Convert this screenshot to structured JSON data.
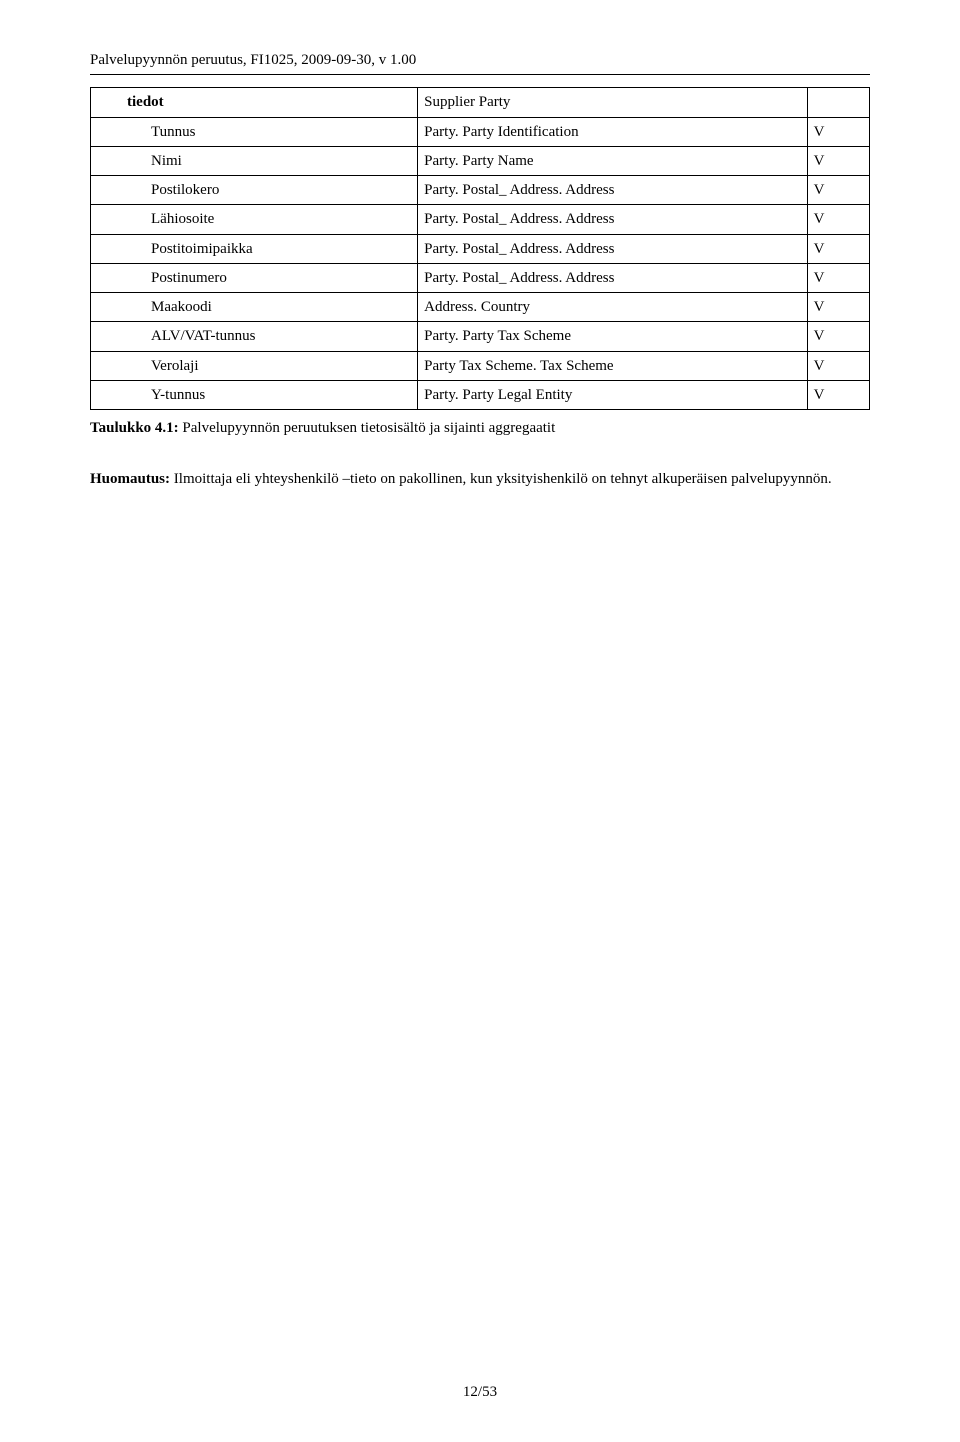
{
  "header": {
    "title": "Palvelupyynnön peruutus, FI1025, 2009-09-30, v 1.00"
  },
  "table": {
    "rows": [
      {
        "label": "tiedot",
        "labelBold": true,
        "indent": 1,
        "value": "Supplier Party",
        "mark": ""
      },
      {
        "label": "Tunnus",
        "labelBold": false,
        "indent": 2,
        "value": "Party. Party Identification",
        "mark": "V"
      },
      {
        "label": "Nimi",
        "labelBold": false,
        "indent": 2,
        "value": "Party. Party Name",
        "mark": "V"
      },
      {
        "label": "Postilokero",
        "labelBold": false,
        "indent": 2,
        "value": "Party. Postal_ Address. Address",
        "mark": "V"
      },
      {
        "label": "Lähiosoite",
        "labelBold": false,
        "indent": 2,
        "value": "Party. Postal_ Address. Address",
        "mark": "V"
      },
      {
        "label": "Postitoimipaikka",
        "labelBold": false,
        "indent": 2,
        "value": "Party. Postal_ Address. Address",
        "mark": "V"
      },
      {
        "label": "Postinumero",
        "labelBold": false,
        "indent": 2,
        "value": "Party. Postal_ Address. Address",
        "mark": "V"
      },
      {
        "label": "Maakoodi",
        "labelBold": false,
        "indent": 2,
        "value": "Address. Country",
        "mark": "V"
      },
      {
        "label": "ALV/VAT-tunnus",
        "labelBold": false,
        "indent": 2,
        "value": "Party. Party Tax Scheme",
        "mark": "V"
      },
      {
        "label": "Verolaji",
        "labelBold": false,
        "indent": 2,
        "value": "Party Tax Scheme. Tax Scheme",
        "mark": "V"
      },
      {
        "label": "Y-tunnus",
        "labelBold": false,
        "indent": 2,
        "value": "Party. Party Legal Entity",
        "mark": "V"
      }
    ]
  },
  "caption": {
    "bold": "Taulukko 4.1:",
    "text": " Palvelupyynnön peruutuksen tietosisältö ja sijainti aggregaatit"
  },
  "note": {
    "bold": "Huomautus:",
    "text": " Ilmoittaja eli yhteyshenkilö –tieto on pakollinen, kun yksityishenkilö on tehnyt alkuperäisen palvelupyynnön."
  },
  "pageNumber": "12/53"
}
